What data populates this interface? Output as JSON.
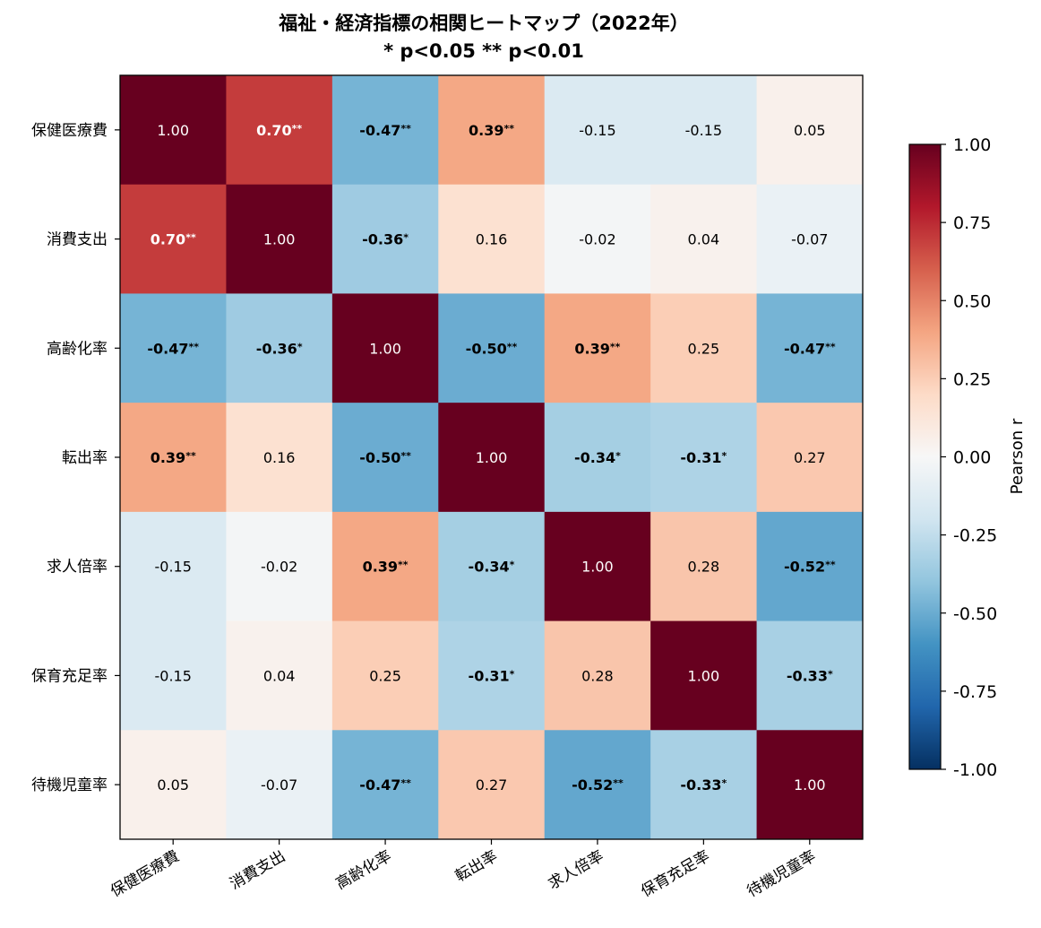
{
  "chart_data": {
    "type": "heatmap",
    "title": "福祉・経済指標の相関ヒートマップ（2022年）",
    "subtitle": "* p<0.05  ** p<0.01",
    "x_categories": [
      "保健医療費",
      "消費支出",
      "高齢化率",
      "転出率",
      "求人倍率",
      "保育充足率",
      "待機児童率"
    ],
    "y_categories": [
      "保健医療費",
      "消費支出",
      "高齢化率",
      "転出率",
      "求人倍率",
      "保育充足率",
      "待機児童率"
    ],
    "values": [
      [
        1.0,
        0.7,
        -0.47,
        0.39,
        -0.15,
        -0.15,
        0.05
      ],
      [
        0.7,
        1.0,
        -0.36,
        0.16,
        -0.02,
        0.04,
        -0.07
      ],
      [
        -0.47,
        -0.36,
        1.0,
        -0.5,
        0.39,
        0.25,
        -0.47
      ],
      [
        0.39,
        0.16,
        -0.5,
        1.0,
        -0.34,
        -0.31,
        0.27
      ],
      [
        -0.15,
        -0.02,
        0.39,
        -0.34,
        1.0,
        0.28,
        -0.52
      ],
      [
        -0.15,
        0.04,
        0.25,
        -0.31,
        0.28,
        1.0,
        -0.33
      ],
      [
        0.05,
        -0.07,
        -0.47,
        0.27,
        -0.52,
        -0.33,
        1.0
      ]
    ],
    "significance": [
      [
        "",
        "**",
        "**",
        "**",
        "",
        "",
        ""
      ],
      [
        "**",
        "",
        "*",
        "",
        "",
        "",
        ""
      ],
      [
        "**",
        "*",
        "",
        "**",
        "**",
        "",
        "**"
      ],
      [
        "**",
        "",
        "**",
        "",
        "*",
        "*",
        ""
      ],
      [
        "",
        "",
        "**",
        "*",
        "",
        "",
        "**"
      ],
      [
        "",
        "",
        "",
        "*",
        "",
        "",
        "*"
      ],
      [
        "",
        "",
        "**",
        "",
        "**",
        "*",
        ""
      ]
    ],
    "colormap": "RdBu_r",
    "colormap_stops": [
      "#053061",
      "#2166ac",
      "#4393c3",
      "#92c5de",
      "#d1e5f0",
      "#f7f7f7",
      "#fddbc7",
      "#f4a582",
      "#d6604d",
      "#b2182b",
      "#67001f"
    ],
    "vmin": -1.0,
    "vmax": 1.0,
    "colorbar": {
      "label": "Pearson r",
      "ticks": [
        "1.00",
        "0.75",
        "0.50",
        "0.25",
        "0.00",
        "-0.25",
        "-0.50",
        "-0.75",
        "-1.00"
      ],
      "tick_values": [
        1.0,
        0.75,
        0.5,
        0.25,
        0.0,
        -0.25,
        -0.5,
        -0.75,
        -1.0
      ]
    }
  }
}
